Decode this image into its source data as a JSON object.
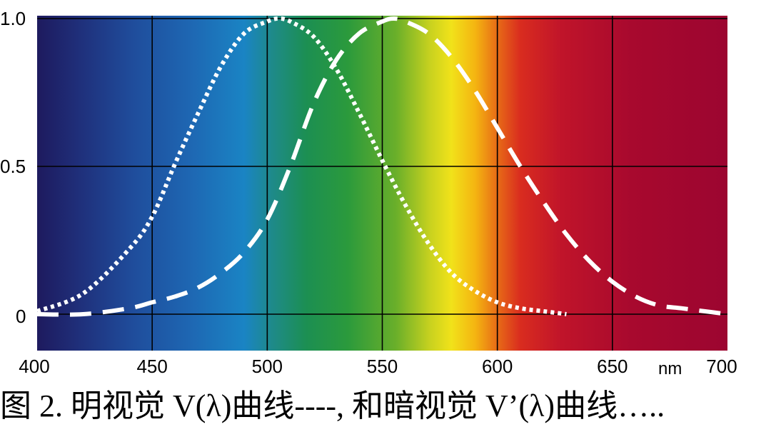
{
  "chart_data": {
    "type": "line",
    "xlim": [
      400,
      700
    ],
    "ylim": [
      0,
      1
    ],
    "x_ticks": [
      400,
      450,
      500,
      550,
      600,
      650,
      700
    ],
    "x_tick_labels": [
      "400",
      "450",
      "500",
      "550",
      "600",
      "650",
      "700"
    ],
    "y_ticks": [
      0,
      0.5,
      1
    ],
    "y_tick_labels": [
      "0",
      "0.5",
      "1.0"
    ],
    "x_unit": "nm",
    "grid": true,
    "background": "visible spectrum gradient",
    "series": [
      {
        "key": "scotopic",
        "style": "dotted",
        "color": "#ffffff",
        "x": [
          400,
          420,
          440,
          450,
          460,
          470,
          480,
          490,
          500,
          505,
          510,
          520,
          530,
          540,
          550,
          560,
          570,
          580,
          590,
          600,
          610,
          620,
          630
        ],
        "y": [
          0.01,
          0.07,
          0.22,
          0.33,
          0.51,
          0.68,
          0.84,
          0.95,
          0.99,
          1.0,
          0.99,
          0.94,
          0.83,
          0.68,
          0.52,
          0.37,
          0.24,
          0.14,
          0.08,
          0.04,
          0.02,
          0.01,
          0.0
        ]
      },
      {
        "key": "photopic",
        "style": "dashed",
        "color": "#ffffff",
        "x": [
          400,
          420,
          440,
          450,
          460,
          470,
          480,
          490,
          500,
          510,
          520,
          530,
          540,
          550,
          555,
          560,
          570,
          580,
          590,
          600,
          610,
          620,
          630,
          640,
          650,
          660,
          670,
          680,
          690,
          700
        ],
        "y": [
          0.0,
          0.0,
          0.02,
          0.04,
          0.06,
          0.09,
          0.14,
          0.21,
          0.32,
          0.5,
          0.71,
          0.86,
          0.95,
          0.99,
          1.0,
          0.99,
          0.95,
          0.87,
          0.76,
          0.63,
          0.5,
          0.38,
          0.27,
          0.18,
          0.11,
          0.06,
          0.03,
          0.02,
          0.01,
          0.0
        ]
      }
    ]
  },
  "caption": {
    "text": "图 2.  明视觉 V(λ)曲线----,  和暗视觉 V’(λ)曲线….."
  }
}
